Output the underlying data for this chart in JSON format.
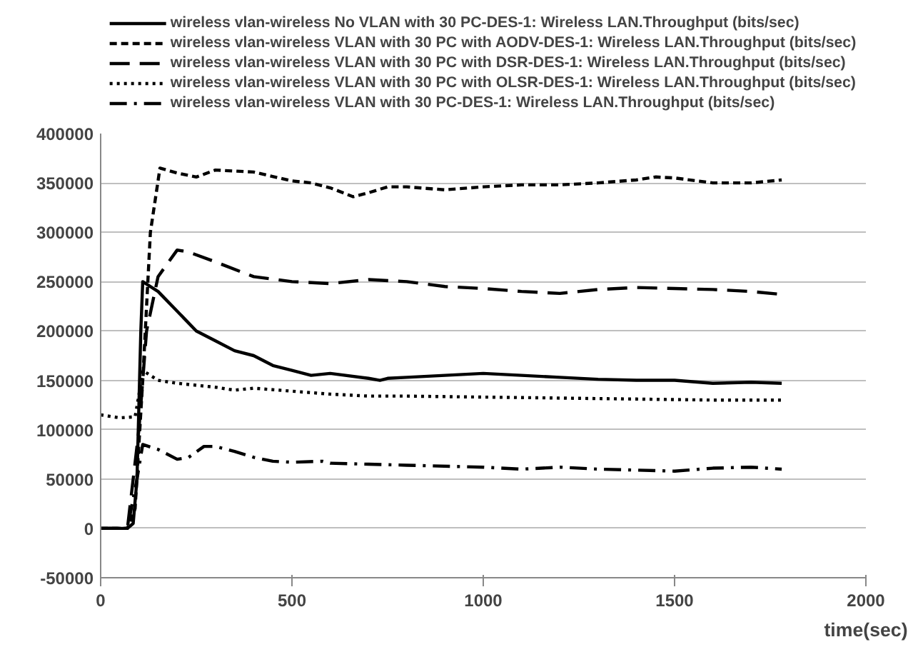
{
  "chart_data": {
    "type": "line",
    "xlabel": "time(sec)",
    "xlim": [
      0,
      2000
    ],
    "xticks": [
      0,
      500,
      1000,
      1500,
      2000
    ],
    "ylim": [
      -50000,
      400000
    ],
    "yticks": [
      -50000,
      0,
      50000,
      100000,
      150000,
      200000,
      250000,
      300000,
      350000,
      400000
    ],
    "grid": "y",
    "legend": "top",
    "marker": "none",
    "series": [
      {
        "name": "wireless vlan-wireless No VLAN with 30 PC-DES-1: Wireless LAN.Throughput (bits/sec)",
        "color": "#000000",
        "line_style": "solid",
        "x": [
          0,
          70,
          85,
          95,
          105,
          110,
          150,
          200,
          250,
          300,
          350,
          400,
          450,
          500,
          550,
          600,
          700,
          730,
          750,
          800,
          900,
          1000,
          1100,
          1200,
          1300,
          1400,
          1500,
          1600,
          1700,
          1780
        ],
        "values": [
          0,
          0,
          5000,
          50000,
          200000,
          250000,
          240000,
          220000,
          200000,
          190000,
          180000,
          175000,
          165000,
          160000,
          155000,
          157000,
          152000,
          150000,
          152000,
          153000,
          155000,
          157000,
          155000,
          153000,
          151000,
          150000,
          150000,
          147000,
          148000,
          147000
        ]
      },
      {
        "name": "wireless vlan-wireless VLAN with 30 PC with AODV-DES-1: Wireless LAN.Throughput (bits/sec)",
        "color": "#000000",
        "line_style": "dashed",
        "x": [
          0,
          70,
          90,
          110,
          130,
          155,
          200,
          250,
          300,
          400,
          500,
          550,
          600,
          660,
          700,
          750,
          800,
          900,
          1000,
          1100,
          1200,
          1300,
          1400,
          1450,
          1500,
          1600,
          1700,
          1780
        ],
        "values": [
          0,
          0,
          20000,
          150000,
          300000,
          365000,
          360000,
          356000,
          363000,
          361000,
          352000,
          350000,
          345000,
          336000,
          340000,
          346000,
          346000,
          343000,
          346000,
          348000,
          348000,
          350000,
          353000,
          356000,
          355000,
          350000,
          350000,
          353000
        ]
      },
      {
        "name": "wireless vlan-wireless VLAN with 30 PC with DSR-DES-1: Wireless LAN.Throughput (bits/sec)",
        "color": "#000000",
        "line_style": "longdash",
        "x": [
          0,
          70,
          100,
          120,
          150,
          200,
          230,
          300,
          400,
          500,
          600,
          700,
          800,
          900,
          1000,
          1100,
          1200,
          1300,
          1400,
          1500,
          1600,
          1700,
          1780
        ],
        "values": [
          0,
          0,
          100000,
          200000,
          255000,
          282000,
          280000,
          270000,
          255000,
          250000,
          248000,
          252000,
          250000,
          245000,
          243000,
          240000,
          238000,
          242000,
          244000,
          243000,
          242000,
          240000,
          237000
        ]
      },
      {
        "name": "wireless vlan-wireless VLAN with 30 PC with OLSR-DES-1: Wireless LAN.Throughput (bits/sec)",
        "color": "#000000",
        "line_style": "dotted",
        "x": [
          0,
          50,
          90,
          100,
          110,
          150,
          200,
          300,
          350,
          400,
          500,
          600,
          700,
          800,
          1000,
          1200,
          1400,
          1600,
          1780
        ],
        "values": [
          115000,
          112000,
          113000,
          135000,
          160000,
          150000,
          147000,
          143000,
          140000,
          142000,
          139000,
          136000,
          134000,
          134000,
          133000,
          132000,
          131000,
          130000,
          130000
        ]
      },
      {
        "name": "wireless vlan-wireless VLAN with 30 PC-DES-1: Wireless LAN.Throughput (bits/sec)",
        "color": "#000000",
        "line_style": "dashdot",
        "x": [
          0,
          70,
          95,
          110,
          150,
          200,
          230,
          270,
          300,
          350,
          400,
          450,
          500,
          580,
          600,
          700,
          800,
          1000,
          1100,
          1200,
          1300,
          1400,
          1500,
          1600,
          1700,
          1780
        ],
        "values": [
          0,
          0,
          50000,
          85000,
          80000,
          70000,
          72000,
          83000,
          83000,
          78000,
          72000,
          68000,
          67000,
          68000,
          66000,
          65000,
          64000,
          62000,
          60000,
          62000,
          60000,
          59000,
          58000,
          61000,
          62000,
          60000
        ]
      }
    ]
  }
}
